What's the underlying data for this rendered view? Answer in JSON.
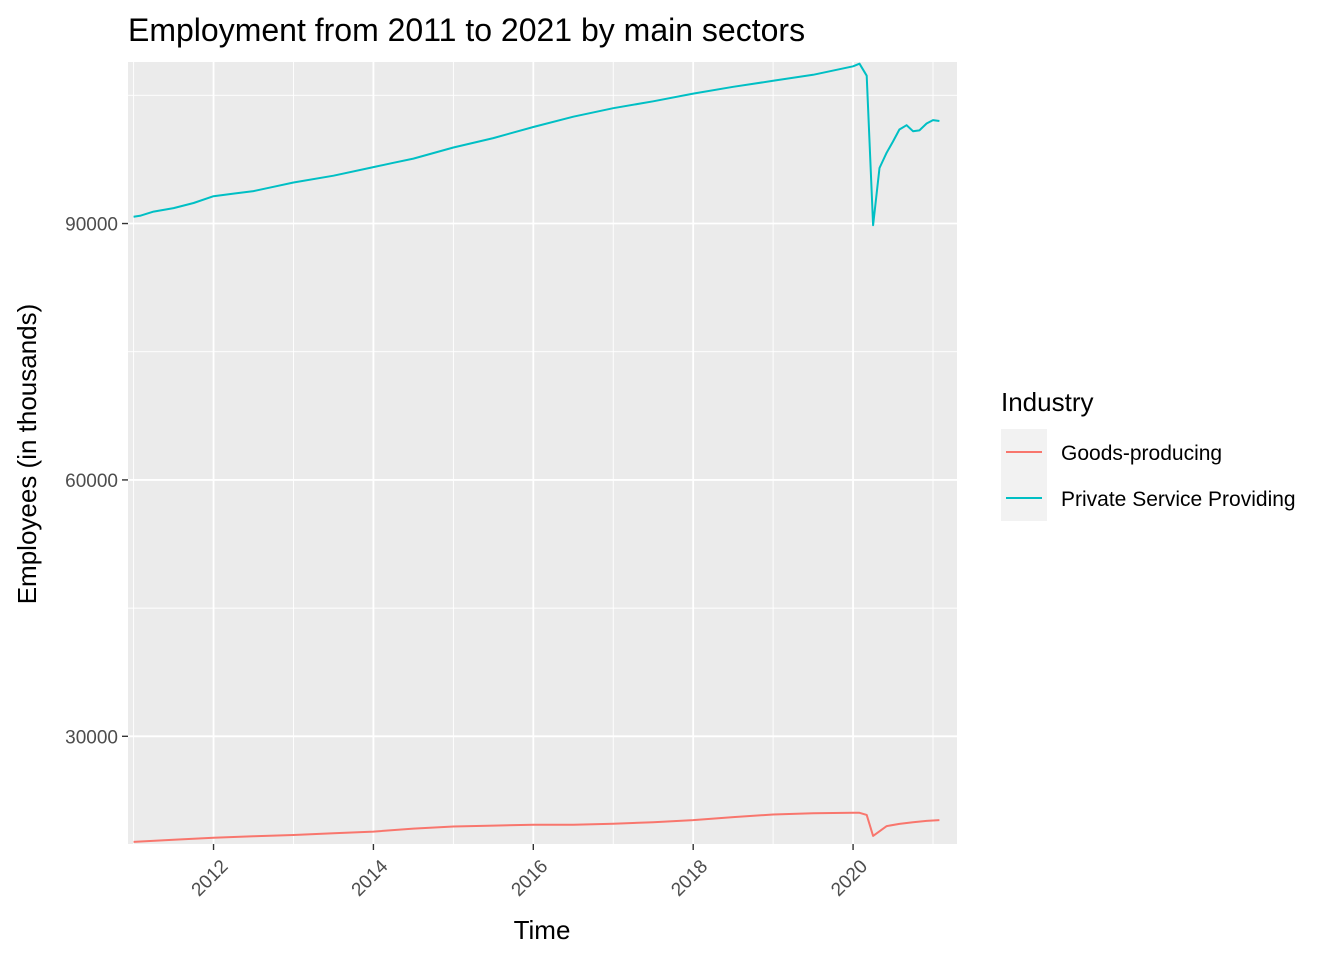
{
  "chart_data": {
    "type": "line",
    "title": "Employment from 2011 to 2021 by main sectors",
    "xlabel": "Time",
    "ylabel": "Employees (in thousands)",
    "xlim": [
      2010.93,
      2021.3
    ],
    "ylim": [
      17400,
      108900
    ],
    "x_ticks": [
      2012,
      2014,
      2016,
      2018,
      2020
    ],
    "x_tick_labels": [
      "2012",
      "2014",
      "2016",
      "2018",
      "2020"
    ],
    "y_ticks": [
      30000,
      60000,
      90000
    ],
    "y_tick_labels": [
      "30000",
      "60000",
      "90000"
    ],
    "grid": true,
    "legend": {
      "title": "Industry",
      "position": "right",
      "entries": [
        "Goods-producing",
        "Private Service Providing"
      ]
    },
    "series": [
      {
        "name": "Goods-producing",
        "color": "#F8766D",
        "x": [
          2011.0,
          2011.5,
          2012.0,
          2012.5,
          2013.0,
          2013.5,
          2014.0,
          2014.5,
          2015.0,
          2015.5,
          2016.0,
          2016.5,
          2017.0,
          2017.5,
          2018.0,
          2018.5,
          2019.0,
          2019.5,
          2020.0,
          2020.08,
          2020.17,
          2020.25,
          2020.42,
          2020.58,
          2020.75,
          2020.92,
          2021.08
        ],
        "values": [
          17650,
          17900,
          18130,
          18300,
          18450,
          18650,
          18850,
          19200,
          19450,
          19550,
          19650,
          19650,
          19780,
          19950,
          20200,
          20550,
          20850,
          21000,
          21050,
          21050,
          20800,
          18350,
          19500,
          19750,
          19950,
          20100,
          20200
        ]
      },
      {
        "name": "Private Service Providing",
        "color": "#00BFC4",
        "x": [
          2011.0,
          2011.08,
          2011.25,
          2011.5,
          2011.75,
          2012.0,
          2012.25,
          2012.5,
          2012.75,
          2013.0,
          2013.5,
          2014.0,
          2014.25,
          2014.5,
          2015.0,
          2015.5,
          2016.0,
          2016.5,
          2017.0,
          2017.5,
          2018.0,
          2018.5,
          2019.0,
          2019.5,
          2020.0,
          2020.08,
          2020.17,
          2020.25,
          2020.33,
          2020.42,
          2020.5,
          2020.58,
          2020.67,
          2020.75,
          2020.83,
          2020.92,
          2021.0,
          2021.08
        ],
        "values": [
          90800,
          90900,
          91400,
          91800,
          92400,
          93200,
          93500,
          93800,
          94300,
          94800,
          95600,
          96600,
          97100,
          97600,
          98900,
          100000,
          101300,
          102500,
          103500,
          104300,
          105200,
          106000,
          106700,
          107400,
          108400,
          108700,
          107300,
          89800,
          96500,
          98300,
          99600,
          101000,
          101500,
          100800,
          100900,
          101700,
          102100,
          102000
        ]
      }
    ]
  }
}
